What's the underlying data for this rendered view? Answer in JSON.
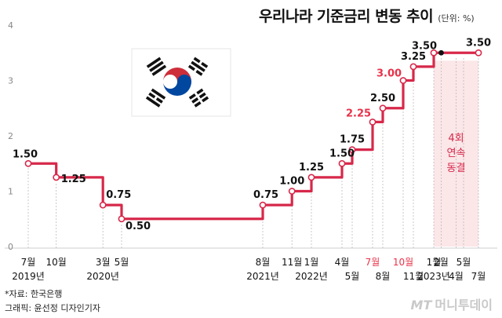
{
  "header": {
    "title": "우리나라 기준금리 변동 추이",
    "unit": "(단위: %)"
  },
  "footer": {
    "source": "*자료: 한국은행",
    "credit": "그래픽: 윤선정 디자인기자"
  },
  "watermark": {
    "mark": "MT",
    "text": "머니투데이"
  },
  "annotation": {
    "lines": [
      "4회",
      "연속",
      "동결"
    ]
  },
  "colors": {
    "line": "#d7284a",
    "highlight": "#e8334a",
    "shade": "#fbe6e8",
    "text": "#111111",
    "axis": "#888888"
  },
  "chart_data": {
    "type": "line",
    "step": true,
    "ylim": [
      0,
      4
    ],
    "yticks": [
      "0",
      "1",
      "2",
      "3",
      "4"
    ],
    "grid": false,
    "points": [
      {
        "x": "2019-07",
        "y": 1.5,
        "label": "1.50",
        "highlight": false
      },
      {
        "x": "2019-10",
        "y": 1.25,
        "label": "1.25",
        "highlight": false
      },
      {
        "x": "2020-03",
        "y": 0.75,
        "label": "0.75",
        "highlight": false
      },
      {
        "x": "2020-05",
        "y": 0.5,
        "label": "0.50",
        "highlight": false
      },
      {
        "x": "2021-08",
        "y": 0.75,
        "label": "0.75",
        "highlight": false
      },
      {
        "x": "2021-11",
        "y": 1.0,
        "label": "1.00",
        "highlight": false
      },
      {
        "x": "2022-01",
        "y": 1.25,
        "label": "1.25",
        "highlight": false
      },
      {
        "x": "2022-04",
        "y": 1.5,
        "label": "1.50",
        "highlight": false
      },
      {
        "x": "2022-05",
        "y": 1.75,
        "label": "1.75",
        "highlight": false
      },
      {
        "x": "2022-07",
        "y": 2.25,
        "label": "2.25",
        "highlight": true
      },
      {
        "x": "2022-08",
        "y": 2.5,
        "label": "2.50",
        "highlight": false
      },
      {
        "x": "2022-10",
        "y": 3.0,
        "label": "3.00",
        "highlight": true
      },
      {
        "x": "2022-11",
        "y": 3.25,
        "label": "3.25",
        "highlight": false
      },
      {
        "x": "2023-01",
        "y": 3.5,
        "label": "3.50",
        "highlight": false
      },
      {
        "x": "2023-07",
        "y": 3.5,
        "label": "3.50",
        "highlight": false
      }
    ],
    "freeze_marks": [
      {
        "x": "2023-02",
        "y": 3.5
      },
      {
        "x": "2023-04",
        "y": 3.5
      },
      {
        "x": "2023-05",
        "y": 3.5
      }
    ],
    "x_labels": [
      {
        "month": "7월",
        "year": "2019년",
        "highlight": false
      },
      {
        "month": "10월",
        "year": "",
        "highlight": false
      },
      {
        "month": "3월",
        "year": "2020년",
        "highlight": false
      },
      {
        "month": "5월",
        "year": "",
        "highlight": false
      },
      {
        "month": "8월",
        "year": "2021년",
        "highlight": false
      },
      {
        "month": "11월",
        "year": "",
        "highlight": false
      },
      {
        "month": "1월",
        "year": "2022년",
        "highlight": false
      },
      {
        "month": "4월",
        "year": "",
        "highlight": false
      },
      {
        "month": "5월",
        "year": "",
        "highlight": false
      },
      {
        "month": "7월",
        "year": "",
        "highlight": true
      },
      {
        "month": "8월",
        "year": "",
        "highlight": false
      },
      {
        "month": "10월",
        "year": "",
        "highlight": true
      },
      {
        "month": "11월",
        "year": "",
        "highlight": false
      },
      {
        "month": "1월",
        "year": "2023년",
        "highlight": false
      },
      {
        "month": "2월",
        "year": "",
        "highlight": false
      },
      {
        "month": "4월",
        "year": "",
        "highlight": false
      },
      {
        "month": "5월",
        "year": "",
        "highlight": false
      },
      {
        "month": "7월",
        "year": "",
        "highlight": false
      }
    ]
  }
}
